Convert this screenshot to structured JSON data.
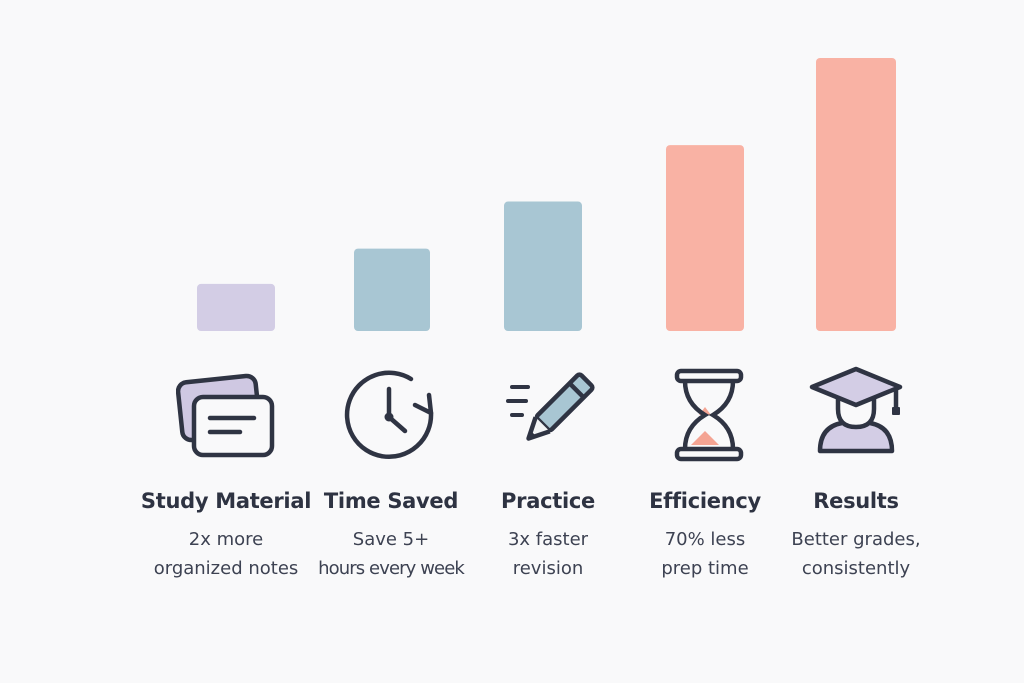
{
  "chart_data": {
    "type": "bar",
    "categories": [
      "Study Material",
      "Time Saved",
      "Practice",
      "Efficiency",
      "Results"
    ],
    "values": [
      1.0,
      1.75,
      2.75,
      3.95,
      5.8
    ],
    "ylim": [
      0,
      5.8
    ],
    "grid": false,
    "legend": "none",
    "colors": [
      "#d3cde5",
      "#a8c6d3",
      "#a8c6d3",
      "#f9b2a4",
      "#f9b2a4"
    ]
  },
  "items": [
    {
      "title": "Study Material",
      "line1": "2x more",
      "line2": "organized notes",
      "icon": "flashcards-icon"
    },
    {
      "title": "Time Saved",
      "line1": "Save 5+",
      "line2": "hours every week",
      "icon": "clock-refresh-icon"
    },
    {
      "title": "Practice",
      "line1": "3x faster",
      "line2": "revision",
      "icon": "pencil-icon"
    },
    {
      "title": "Efficiency",
      "line1": "70% less",
      "line2": "prep time",
      "icon": "hourglass-icon"
    },
    {
      "title": "Results",
      "line1": "Better grades,",
      "line2": "consistently",
      "icon": "graduate-icon"
    }
  ]
}
